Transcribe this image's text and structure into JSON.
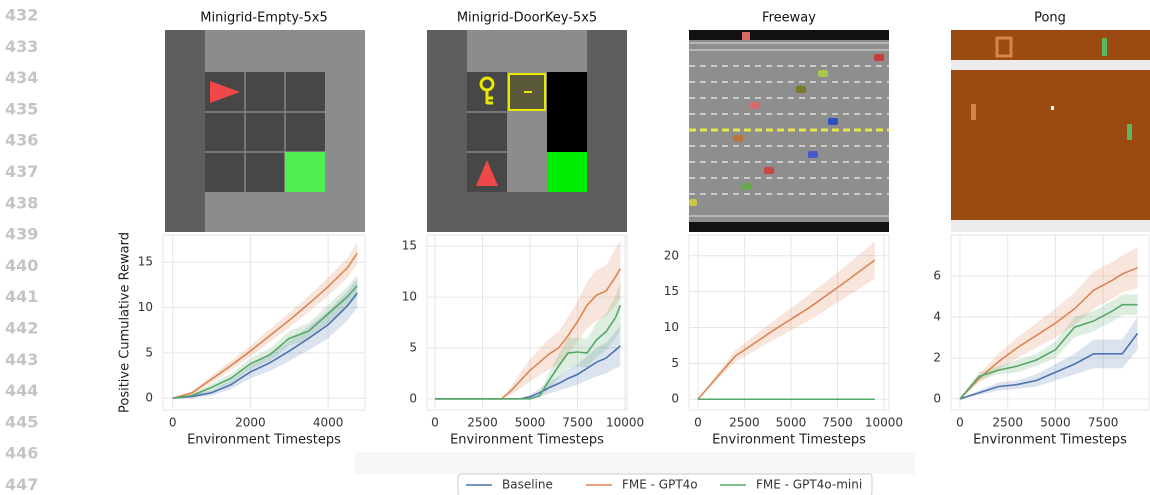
{
  "line_numbers": [
    "432",
    "433",
    "434",
    "435",
    "436",
    "437",
    "438",
    "439",
    "440",
    "441",
    "442",
    "443",
    "444",
    "445",
    "446",
    "447"
  ],
  "chart_data": [
    {
      "type": "line",
      "title": "Minigrid-Empty-5x5",
      "xlabel": "Environment Timesteps",
      "ylabel": "Positive Cumulative Reward",
      "legend": "bottom",
      "x": [
        0,
        500,
        1000,
        1500,
        2000,
        2500,
        3000,
        3500,
        4000,
        4500,
        4750
      ],
      "xlim": [
        -250,
        4950
      ],
      "ylim": [
        -1.3,
        18
      ],
      "xticks": [
        0,
        2000,
        4000
      ],
      "yticks": [
        0,
        5,
        10,
        15
      ],
      "series": [
        {
          "name": "Baseline",
          "color": "#4c72b0",
          "values": [
            0,
            0.2,
            0.6,
            1.5,
            2.9,
            3.9,
            5.2,
            6.6,
            8.1,
            10.2,
            11.6
          ],
          "lower": [
            0,
            0,
            0.3,
            1.0,
            2.2,
            3.0,
            4.1,
            5.3,
            6.6,
            8.6,
            10.0
          ],
          "upper": [
            0,
            0.4,
            0.9,
            2.0,
            3.6,
            4.8,
            6.3,
            7.9,
            9.6,
            11.8,
            13.2
          ]
        },
        {
          "name": "FME - GPT4o",
          "color": "#dd8452",
          "values": [
            0,
            0.6,
            2.1,
            3.6,
            5.2,
            6.9,
            8.6,
            10.4,
            12.3,
            14.4,
            16.0
          ],
          "lower": [
            0,
            0.4,
            1.7,
            3.1,
            4.6,
            6.2,
            7.8,
            9.5,
            11.3,
            13.3,
            14.8
          ],
          "upper": [
            0,
            0.8,
            2.5,
            4.1,
            5.8,
            7.6,
            9.4,
            11.3,
            13.3,
            15.5,
            17.2
          ]
        },
        {
          "name": "FME - GPT4o-mini",
          "color": "#55a868",
          "values": [
            0,
            0.3,
            1.2,
            2.2,
            3.8,
            4.8,
            6.6,
            7.4,
            9.3,
            11.2,
            12.4
          ],
          "lower": [
            0,
            0.1,
            0.8,
            1.7,
            3.2,
            4.1,
            5.8,
            6.5,
            8.3,
            10.1,
            11.2
          ],
          "upper": [
            0,
            0.5,
            1.6,
            2.7,
            4.4,
            5.5,
            7.4,
            8.3,
            10.3,
            12.3,
            13.6
          ]
        }
      ]
    },
    {
      "type": "line",
      "title": "Minigrid-DoorKey-5x5",
      "xlabel": "Environment Timesteps",
      "x": [
        0,
        1000,
        2000,
        3000,
        3500,
        4000,
        4500,
        5000,
        5500,
        6000,
        6500,
        7000,
        7500,
        8000,
        8500,
        9000,
        9500,
        9750
      ],
      "xlim": [
        -420,
        10100
      ],
      "ylim": [
        -1.1,
        16.1
      ],
      "xticks": [
        0,
        2500,
        5000,
        7500,
        10000
      ],
      "yticks": [
        0,
        5,
        10,
        15
      ],
      "series": [
        {
          "name": "Baseline",
          "color": "#4c72b0",
          "values": [
            0,
            0,
            0,
            0,
            0,
            0,
            0,
            0.2,
            0.6,
            1.1,
            1.5,
            2.0,
            2.4,
            3.0,
            3.6,
            4.0,
            4.8,
            5.2
          ],
          "lower": [
            0,
            0,
            0,
            0,
            0,
            0,
            0,
            0,
            0.2,
            0.5,
            0.8,
            1.1,
            1.4,
            1.8,
            2.2,
            2.5,
            3.0,
            3.2
          ],
          "upper": [
            0,
            0,
            0,
            0,
            0,
            0,
            0,
            0.4,
            1.0,
            1.7,
            2.2,
            2.9,
            3.4,
            4.2,
            5.0,
            5.5,
            6.6,
            7.2
          ]
        },
        {
          "name": "FME - GPT4o",
          "color": "#dd8452",
          "values": [
            0,
            0,
            0,
            0,
            0,
            0.8,
            1.8,
            2.8,
            3.6,
            4.4,
            5.0,
            6.2,
            7.6,
            9.2,
            10.2,
            10.6,
            12.0,
            12.8
          ],
          "lower": [
            0,
            0,
            0,
            0,
            0,
            0.4,
            1.0,
            1.7,
            2.3,
            2.9,
            3.4,
            4.4,
            5.6,
            6.9,
            7.7,
            8.1,
            9.2,
            10.0
          ],
          "upper": [
            0,
            0,
            0,
            0,
            0,
            1.2,
            2.6,
            3.9,
            4.9,
            5.9,
            6.6,
            8.0,
            9.6,
            11.5,
            12.7,
            13.1,
            14.8,
            15.6
          ]
        },
        {
          "name": "FME - GPT4o-mini",
          "color": "#55a868",
          "values": [
            0,
            0,
            0,
            0,
            0,
            0,
            0,
            0,
            0.3,
            1.8,
            3.2,
            4.5,
            4.6,
            4.5,
            5.8,
            6.6,
            8.0,
            9.2
          ],
          "lower": [
            0,
            0,
            0,
            0,
            0,
            0,
            0,
            0,
            0.1,
            1.0,
            2.0,
            3.0,
            3.2,
            3.1,
            4.1,
            4.8,
            5.9,
            6.9
          ],
          "upper": [
            0,
            0,
            0,
            0,
            0,
            0,
            0,
            0,
            0.5,
            2.6,
            4.4,
            6.0,
            6.0,
            5.9,
            7.5,
            8.4,
            10.1,
            11.5
          ]
        }
      ]
    },
    {
      "type": "line",
      "title": "Freeway",
      "xlabel": "Environment Timesteps",
      "x": [
        0,
        2000,
        4000,
        6000,
        8000,
        9500
      ],
      "xlim": [
        -480,
        10270
      ],
      "ylim": [
        -1.5,
        22.9
      ],
      "xticks": [
        0,
        2500,
        5000,
        7500,
        10000
      ],
      "yticks": [
        0,
        5,
        10,
        15,
        20
      ],
      "series": [
        {
          "name": "Baseline",
          "color": "#4c72b0",
          "values": [
            0,
            0,
            0,
            0,
            0,
            0
          ]
        },
        {
          "name": "FME - GPT4o",
          "color": "#dd8452",
          "values": [
            0,
            6,
            9.5,
            12.8,
            16.5,
            19.4
          ],
          "lower": [
            0,
            5.2,
            8.2,
            11.0,
            14.3,
            16.8
          ],
          "upper": [
            0,
            6.8,
            10.8,
            14.6,
            18.7,
            22.0
          ]
        },
        {
          "name": "FME - GPT4o-mini",
          "color": "#55a868",
          "values": [
            0,
            0,
            0,
            0,
            0,
            0
          ]
        }
      ]
    },
    {
      "type": "line",
      "title": "Pong",
      "xlabel": "Environment Timesteps",
      "x": [
        0,
        1000,
        2000,
        3000,
        4000,
        5000,
        6000,
        7000,
        8000,
        8500,
        9300
      ],
      "xlim": [
        -470,
        9900
      ],
      "ylim": [
        -0.54,
        8.0
      ],
      "xticks": [
        0,
        2500,
        5000,
        7500
      ],
      "yticks": [
        0,
        2,
        4,
        6
      ],
      "series": [
        {
          "name": "Baseline",
          "color": "#4c72b0",
          "values": [
            0,
            0.3,
            0.6,
            0.7,
            0.9,
            1.3,
            1.7,
            2.2,
            2.2,
            2.2,
            3.2
          ],
          "lower": [
            0,
            0.2,
            0.4,
            0.5,
            0.6,
            0.9,
            1.2,
            1.5,
            1.5,
            1.5,
            2.4
          ],
          "upper": [
            0,
            0.4,
            0.8,
            0.9,
            1.2,
            1.7,
            2.2,
            2.9,
            2.9,
            2.9,
            4.0
          ]
        },
        {
          "name": "FME - GPT4o",
          "color": "#dd8452",
          "values": [
            0,
            1.0,
            1.8,
            2.5,
            3.1,
            3.7,
            4.4,
            5.3,
            5.8,
            6.1,
            6.4
          ],
          "lower": [
            0,
            0.8,
            1.4,
            2.0,
            2.5,
            3.0,
            3.6,
            4.4,
            4.9,
            5.2,
            5.4
          ],
          "upper": [
            0,
            1.2,
            2.2,
            3.0,
            3.7,
            4.4,
            5.2,
            6.2,
            6.7,
            7.0,
            7.4
          ]
        },
        {
          "name": "FME - GPT4o-mini",
          "color": "#55a868",
          "values": [
            0,
            1.1,
            1.4,
            1.6,
            1.9,
            2.4,
            3.5,
            3.8,
            4.3,
            4.6,
            4.6
          ],
          "lower": [
            0,
            0.9,
            1.2,
            1.3,
            1.6,
            2.0,
            3.0,
            3.3,
            3.8,
            4.1,
            4.1
          ],
          "upper": [
            0,
            1.3,
            1.6,
            1.9,
            2.2,
            2.8,
            4.0,
            4.3,
            4.8,
            5.1,
            5.1
          ]
        }
      ]
    }
  ]
}
